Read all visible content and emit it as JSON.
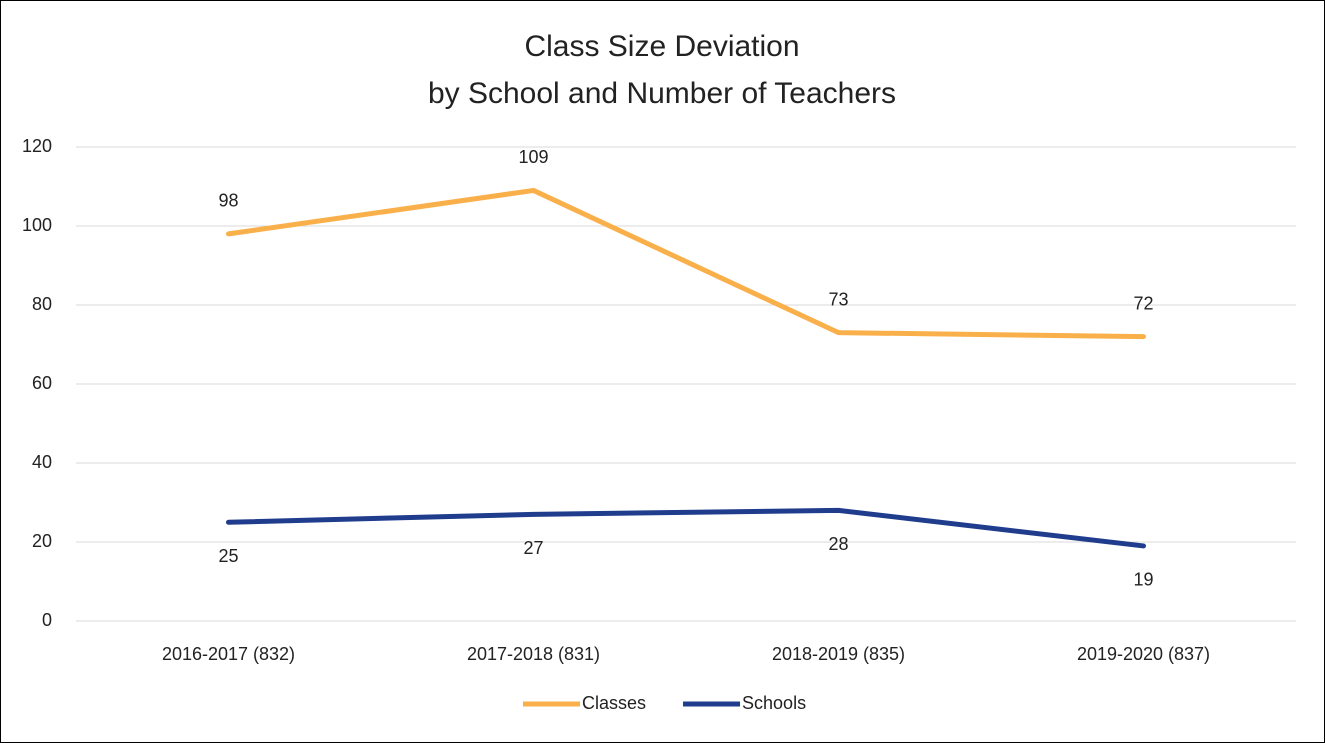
{
  "chart_data": {
    "type": "line",
    "title": "Class Size Deviation",
    "subtitle": "by School and Number of Teachers",
    "categories": [
      "2016-2017 (832)",
      "2017-2018 (831)",
      "2018-2019 (835)",
      "2019-2020 (837)"
    ],
    "series": [
      {
        "name": "Classes",
        "color": "#f9b04b",
        "values": [
          98,
          109,
          73,
          72
        ]
      },
      {
        "name": "Schools",
        "color": "#1f3d8c",
        "values": [
          25,
          27,
          28,
          19
        ]
      }
    ],
    "ylim": [
      0,
      120
    ],
    "yticks": [
      0,
      20,
      40,
      60,
      80,
      100,
      120
    ],
    "grid": true,
    "legend": "bottom"
  }
}
